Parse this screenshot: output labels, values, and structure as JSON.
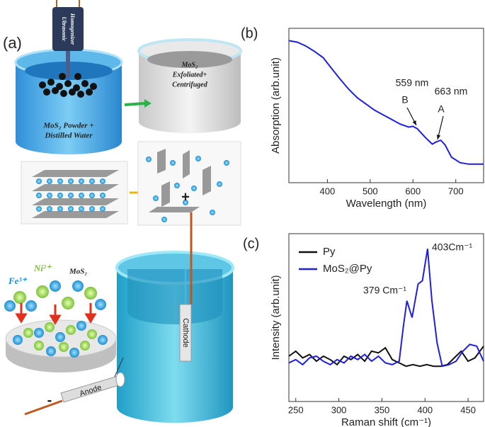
{
  "labels": {
    "a": "(a)",
    "b": "(b)",
    "c": "(c)"
  },
  "illustration": {
    "homogenizer": [
      "Ultrasonic",
      "Homogenizer"
    ],
    "powder": [
      "MoS₂ Powder +",
      "Distilled Water"
    ],
    "exfoliated": [
      "MoS₂",
      "Exfoliated+",
      "Centrifuged"
    ],
    "ions": {
      "fe": "Fe³⁺",
      "ni": "Ni²⁺",
      "mos2": "MoS₂"
    },
    "cathode": "Cathode",
    "anode": "Anode",
    "plus": "+",
    "minus": "-"
  },
  "chart_data": [
    {
      "type": "line",
      "xlabel": "Wavelength (nm)",
      "ylabel": "Absorption (arb.unit)",
      "xlim": [
        310,
        765
      ],
      "xticks": [
        400,
        500,
        600,
        700
      ],
      "ylim": [
        0,
        1
      ],
      "series": [
        {
          "color": "#1f1fe0",
          "x": [
            310,
            330,
            350,
            370,
            390,
            410,
            430,
            450,
            470,
            490,
            510,
            530,
            550,
            570,
            590,
            600,
            610,
            630,
            645,
            655,
            665,
            675,
            690,
            710,
            730,
            765
          ],
          "values": [
            0.92,
            0.91,
            0.885,
            0.85,
            0.81,
            0.74,
            0.67,
            0.605,
            0.55,
            0.51,
            0.47,
            0.44,
            0.41,
            0.38,
            0.36,
            0.365,
            0.35,
            0.29,
            0.25,
            0.265,
            0.275,
            0.245,
            0.165,
            0.13,
            0.12,
            0.12
          ]
        }
      ],
      "annotations": [
        "559 nm",
        "B",
        "663 nm",
        "A"
      ]
    },
    {
      "type": "line",
      "xlabel": "Raman shift (cm⁻¹)",
      "ylabel": "Intensity (arb.unit)",
      "xlim": [
        242,
        468
      ],
      "xticks": [
        250,
        300,
        350,
        400,
        450
      ],
      "ylim": [
        0,
        1
      ],
      "legend": "upper left",
      "series": [
        {
          "name": "Py",
          "color": "#111111",
          "x": [
            242,
            250,
            258,
            266,
            274,
            282,
            290,
            298,
            306,
            314,
            322,
            330,
            338,
            346,
            354,
            362,
            370,
            378,
            386,
            394,
            402,
            410,
            418,
            426,
            434,
            442,
            450,
            458,
            468
          ],
          "values": [
            0.27,
            0.3,
            0.26,
            0.28,
            0.24,
            0.27,
            0.25,
            0.22,
            0.27,
            0.25,
            0.28,
            0.24,
            0.3,
            0.29,
            0.32,
            0.25,
            0.23,
            0.21,
            0.22,
            0.21,
            0.22,
            0.21,
            0.21,
            0.22,
            0.26,
            0.3,
            0.24,
            0.26,
            0.33
          ]
        },
        {
          "name": "MoS₂@Py",
          "color": "#1f1fe0",
          "x": [
            242,
            250,
            258,
            266,
            274,
            282,
            290,
            298,
            306,
            314,
            322,
            330,
            338,
            346,
            354,
            362,
            370,
            375,
            379,
            385,
            392,
            397,
            403,
            408,
            414,
            420,
            428,
            436,
            444,
            452,
            460,
            468
          ],
          "values": [
            0.23,
            0.25,
            0.22,
            0.26,
            0.27,
            0.24,
            0.22,
            0.25,
            0.23,
            0.27,
            0.25,
            0.28,
            0.24,
            0.27,
            0.23,
            0.22,
            0.24,
            0.45,
            0.6,
            0.5,
            0.7,
            0.72,
            0.91,
            0.6,
            0.35,
            0.21,
            0.22,
            0.24,
            0.3,
            0.34,
            0.33,
            0.24
          ]
        }
      ],
      "annotations": [
        "403Cm⁻¹",
        "379 Cm⁻¹"
      ]
    }
  ]
}
